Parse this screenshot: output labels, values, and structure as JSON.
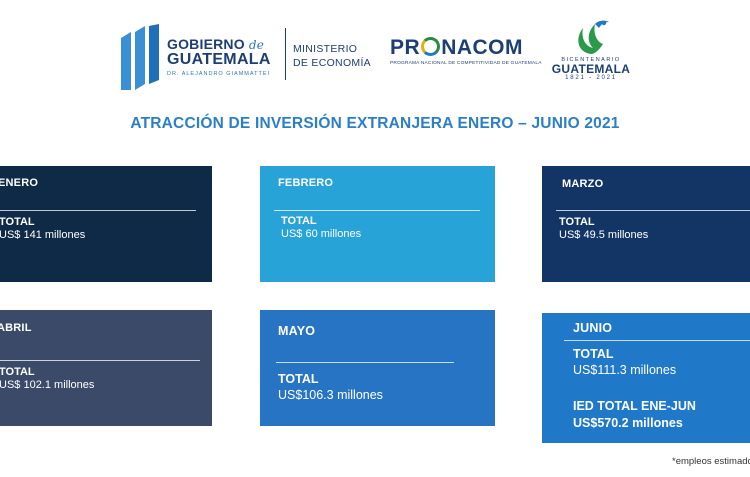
{
  "header": {
    "gobierno": {
      "line1": "GOBIERNO",
      "de": "de",
      "line2": "GUATEMALA",
      "line3": "DR. ALEJANDRO GIAMMATTEI"
    },
    "ministerio": {
      "line1": "MINISTERIO",
      "line2": "DE ECONOMÍA"
    },
    "pronacom": {
      "pre": "PR",
      "post": "NACOM",
      "sub": "PROGRAMA NACIONAL DE COMPETITIVIDAD DE GUATEMALA"
    },
    "bicentenario": {
      "small": "BICENTENARIO",
      "main": "GUATEMALA",
      "years": "1821 - 2021"
    }
  },
  "title": "ATRACCIÓN DE INVERSIÓN EXTRANJERA ENERO – JUNIO 2021",
  "cards": {
    "enero": {
      "month": "ENERO",
      "total_label": "TOTAL",
      "total_value": "US$ 141 millones"
    },
    "febrero": {
      "month": "FEBRERO",
      "total_label": "TOTAL",
      "total_value": "US$ 60 millones"
    },
    "marzo": {
      "month": "MARZO",
      "total_label": "TOTAL",
      "total_value": "US$ 49.5 millones"
    },
    "abril": {
      "month": "ABRIL",
      "total_label": "TOTAL",
      "total_value": "US$ 102.1 millones"
    },
    "mayo": {
      "month": "MAYO",
      "total_label": "TOTAL",
      "total_value": "US$106.3 millones"
    },
    "junio": {
      "month": "JUNIO",
      "total_label": "TOTAL",
      "total_value": "US$111.3 millones",
      "ied_label": "IED TOTAL ENE-JUN",
      "ied_value": "US$570.2 millones"
    }
  },
  "footnote": "*empleos estimados",
  "colors": {
    "title": "#2a7fc8",
    "enero": "#0f2a47",
    "febrero": "#27a3d8",
    "marzo": "#133566",
    "abril": "#3a4a68",
    "mayo": "#2874c4",
    "junio": "#1f78c8"
  }
}
